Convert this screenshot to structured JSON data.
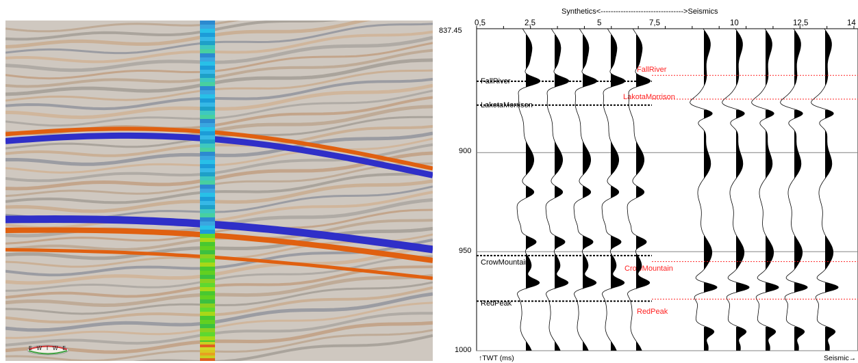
{
  "seismic_view": {
    "compass_letters": "E  W  I  W  E",
    "colors": {
      "trough": "#2f2fc8",
      "peak": "#e06010",
      "background": "#cfc8c0"
    }
  },
  "tie_panel": {
    "title": "Synthetics<--------------------------------->Seismics",
    "x_ticks": [
      "0,5",
      "2,5",
      "5",
      "7,5",
      "10",
      "12,5",
      "14"
    ],
    "y_ticks": [
      "837.45",
      "900",
      "950",
      "1000"
    ],
    "y_axis_label": "TWT (ms)",
    "right_axis_label": "Seismic",
    "synthetic_horizons": [
      {
        "name": "FallRiver",
        "twt": 864
      },
      {
        "name": "LakotaMorrison",
        "twt": 876
      },
      {
        "name": "CrowMountain",
        "twt": 952
      },
      {
        "name": "RedPeak",
        "twt": 975
      }
    ],
    "seismic_horizons": [
      {
        "name": "FallRiver",
        "twt": 861
      },
      {
        "name": "LakotaMorrison",
        "twt": 873
      },
      {
        "name": "CrowMountain",
        "twt": 955
      },
      {
        "name": "RedPeak",
        "twt": 974
      }
    ],
    "colors": {
      "synthetic_marker": "#000000",
      "seismic_marker": "#ff2020",
      "gridline": "#808080"
    }
  }
}
